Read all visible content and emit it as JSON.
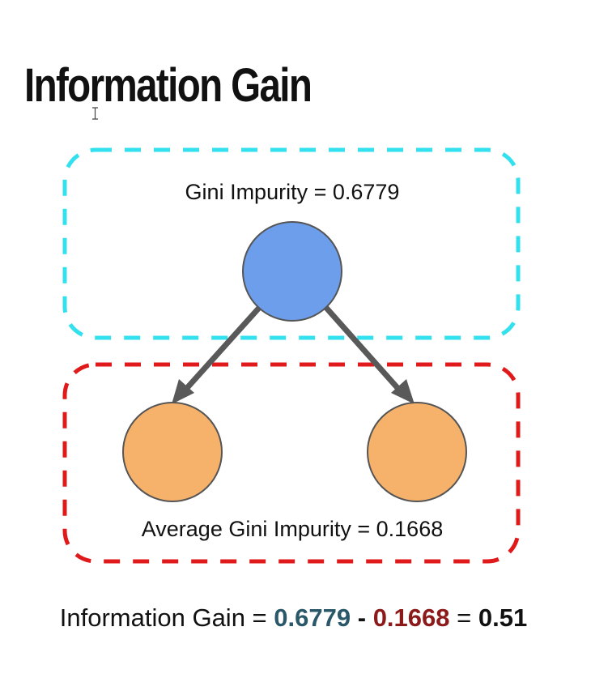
{
  "title": "Information Gain",
  "diagram": {
    "parent_label": "Gini Impurity = 0.6779",
    "children_label": "Average Gini Impurity = 0.1668",
    "colors": {
      "parent_box": "#33e0ee",
      "children_box": "#e01a1a",
      "parent_node": "#6d9eeb",
      "child_node": "#f6b26b",
      "arrow": "#595959"
    }
  },
  "equation": {
    "lhs": "Information Gain =",
    "parent_value": "0.6779",
    "minus": "-",
    "child_value": "0.1668",
    "equals": "=",
    "result": "0.51"
  }
}
